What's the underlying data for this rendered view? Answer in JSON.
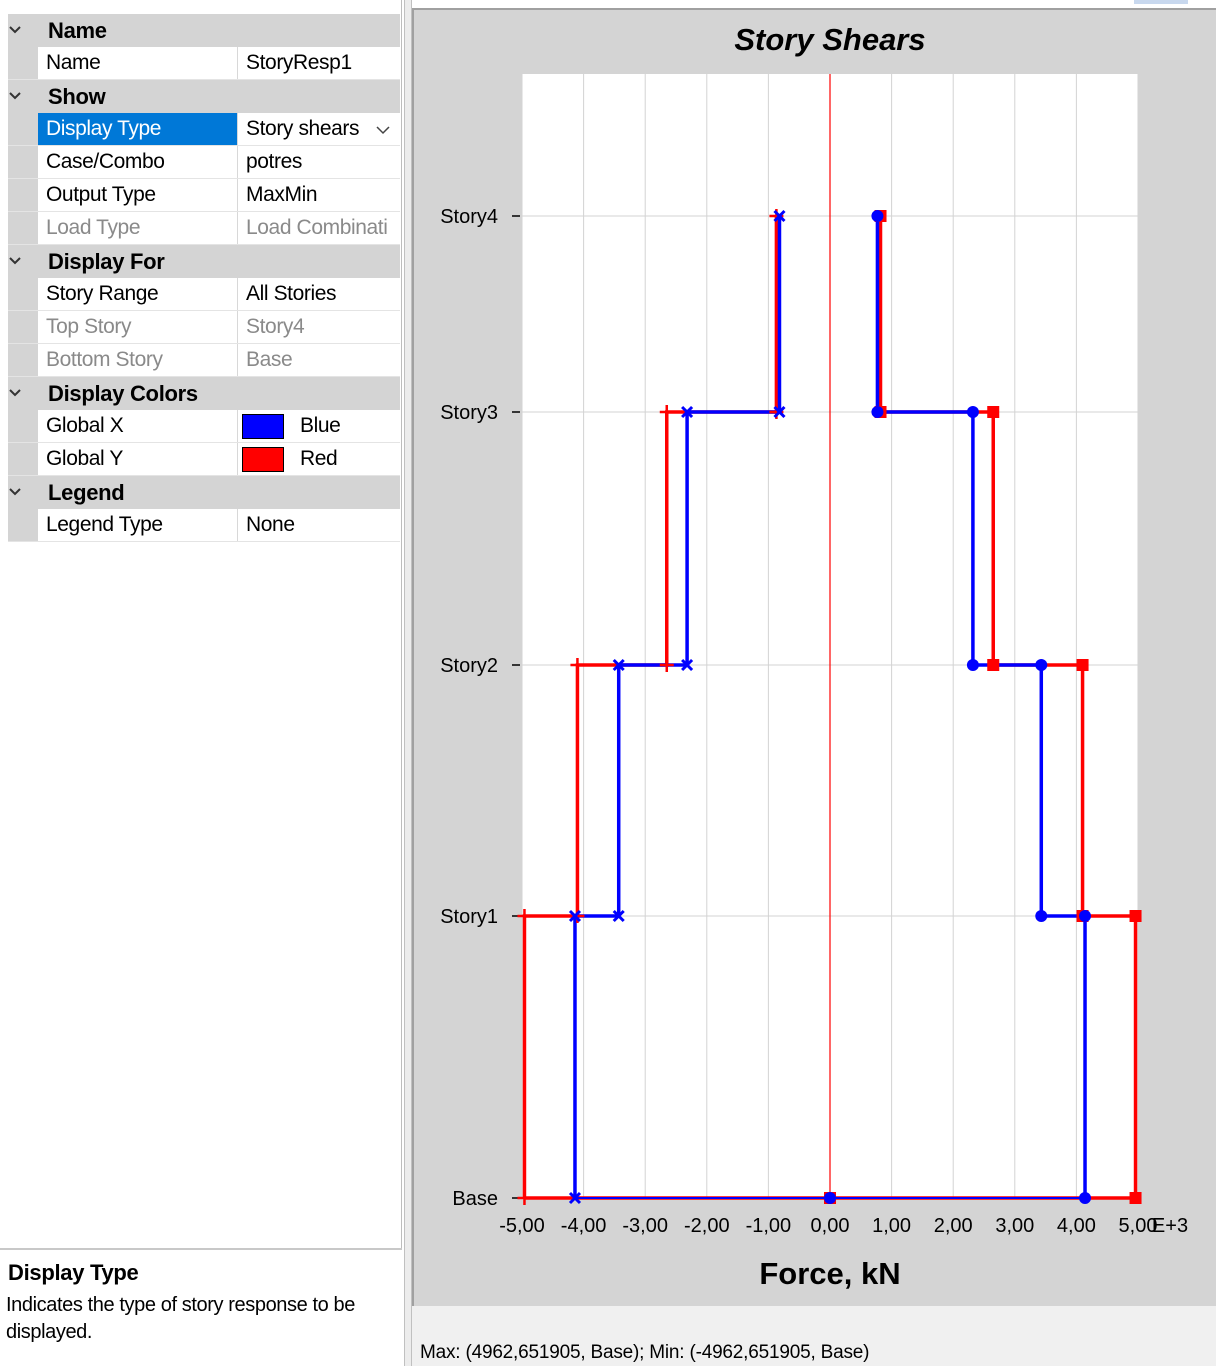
{
  "properties": {
    "categories": [
      {
        "label": "Name",
        "rows": [
          {
            "name": "Name",
            "value": "StoryResp1"
          }
        ]
      },
      {
        "label": "Show",
        "rows": [
          {
            "name": "Display Type",
            "value": "Story shears",
            "selected": true,
            "dropdown": true
          },
          {
            "name": "Case/Combo",
            "value": "potres"
          },
          {
            "name": "Output Type",
            "value": "MaxMin"
          },
          {
            "name": "Load Type",
            "value": "Load Combinati",
            "disabled": true
          }
        ]
      },
      {
        "label": "Display For",
        "rows": [
          {
            "name": "Story Range",
            "value": "All Stories"
          },
          {
            "name": "Top Story",
            "value": "Story4",
            "disabled": true
          },
          {
            "name": "Bottom Story",
            "value": "Base",
            "disabled": true
          }
        ]
      },
      {
        "label": "Display Colors",
        "rows": [
          {
            "name": "Global X",
            "value": "Blue",
            "swatch": "#0000ff"
          },
          {
            "name": "Global Y",
            "value": "Red",
            "swatch": "#ff0000"
          }
        ]
      },
      {
        "label": "Legend",
        "rows": [
          {
            "name": "Legend Type",
            "value": "None"
          }
        ]
      }
    ]
  },
  "help": {
    "title": "Display Type",
    "text": "Indicates the type of story response to be displayed."
  },
  "status": {
    "text": "Max: (4962,651905, Base);   Min: (-4962,651905, Base)"
  },
  "chart_data": {
    "type": "line",
    "title": "Story Shears",
    "xlabel": "Force, kN",
    "x_multiplier_label": "E+3",
    "xlim": [
      -5,
      5
    ],
    "x_ticks": [
      -5,
      -4,
      -3,
      -2,
      -1,
      0,
      1,
      2,
      3,
      4,
      5
    ],
    "x_tick_labels": [
      "-5,00",
      "-4,00",
      "-3,00",
      "-2,00",
      "-1,00",
      "0,00",
      "1,00",
      "2,00",
      "3,00",
      "4,00",
      "5,00"
    ],
    "stories": [
      "Base",
      "Story1",
      "Story2",
      "Story3",
      "Story4"
    ],
    "story_elevations": [
      0,
      1,
      2,
      3,
      4
    ],
    "series": [
      {
        "name": "Global X",
        "color": "#0000ff",
        "min": {
          "values_by_story_span": [
            -4.14,
            -3.43,
            -2.32,
            -0.82
          ],
          "marker": "x"
        },
        "max": {
          "values_by_story_span": [
            4.14,
            3.43,
            2.32,
            0.77
          ],
          "marker": "circle"
        }
      },
      {
        "name": "Global Y",
        "color": "#ff0000",
        "min": {
          "values_by_story_span": [
            -4.96,
            -4.1,
            -2.65,
            -0.87
          ],
          "marker": "plus"
        },
        "max": {
          "values_by_story_span": [
            4.96,
            4.1,
            2.65,
            0.82
          ],
          "marker": "square"
        }
      }
    ],
    "grid": true,
    "legend": "none",
    "zero_line_color": "#ff0000"
  }
}
